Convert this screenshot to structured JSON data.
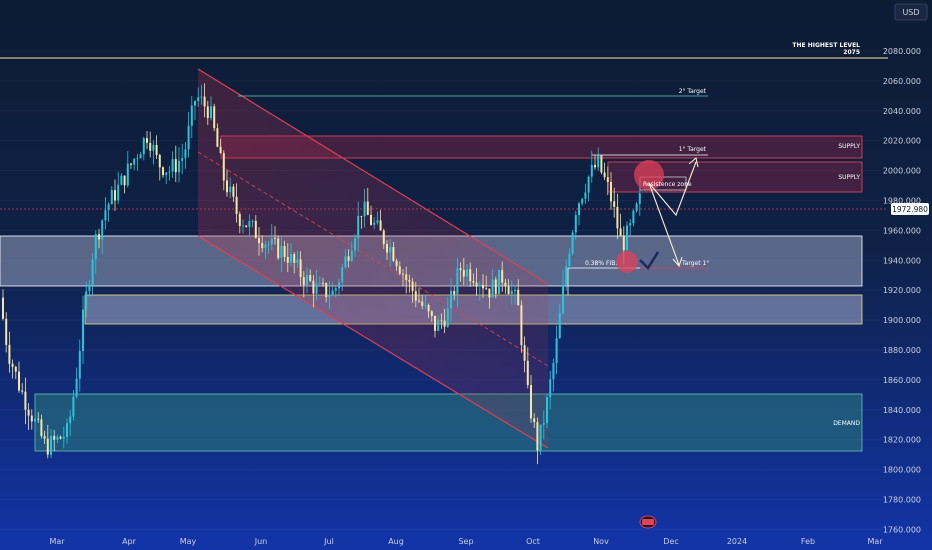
{
  "chart_data": {
    "type": "candlestick",
    "currency_label": "USD",
    "current_price": "1972.980",
    "ylim": [
      1752,
      2098
    ],
    "y_ticks": [
      "2080.000",
      "2060.000",
      "2040.000",
      "2020.000",
      "2000.000",
      "1980.000",
      "1960.000",
      "1940.000",
      "1920.000",
      "1900.000",
      "1880.000",
      "1860.000",
      "1840.000",
      "1820.000",
      "1800.000",
      "1780.000",
      "1760.000"
    ],
    "x_ticks": [
      "Mar",
      "Apr",
      "May",
      "Jun",
      "Jul",
      "Aug",
      "Sep",
      "Oct",
      "Nov",
      "Dec",
      "2024",
      "Feb",
      "Mar"
    ],
    "colors": {
      "up": "#26c6da",
      "down": "#f5e6a8",
      "channel": "#e04050",
      "zone": "#d0d8f0",
      "demand": "#3a8f7a",
      "target": "#ffffff"
    },
    "annotations": {
      "highest_level": "THE HIGHEST LEVEL",
      "highest_value": "2075",
      "target2": "2° Target",
      "target1_top": "1° Target",
      "supply1": "SUPPLY",
      "supply2": "SUPPLY",
      "resistance": "Resistence zone",
      "fib": "0.38% FIB.",
      "target1_bottom": "Target 1°",
      "demand": "DEMAND"
    }
  }
}
